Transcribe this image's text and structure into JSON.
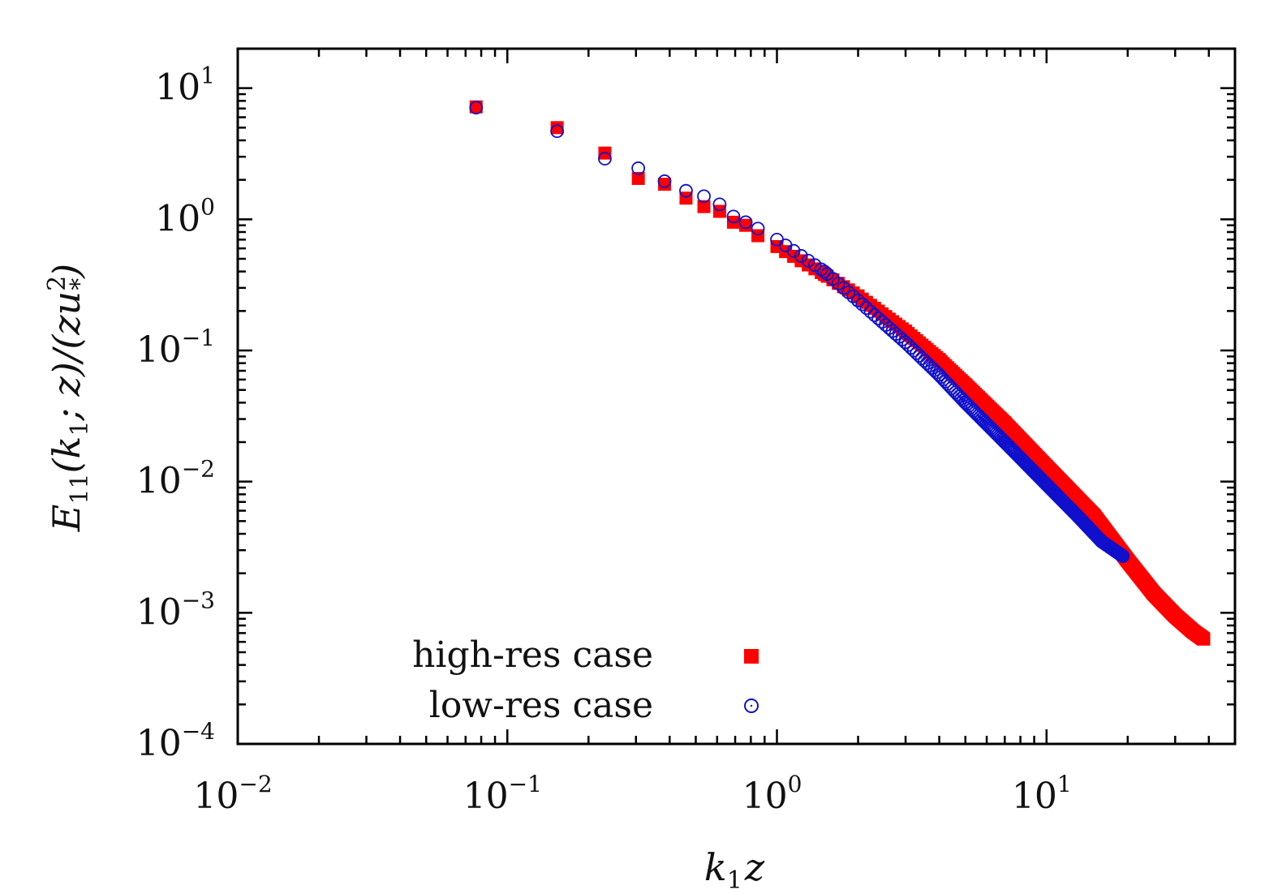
{
  "chart_data": {
    "type": "scatter",
    "x_scale": "log",
    "y_scale": "log",
    "xlim": [
      0.01,
      50
    ],
    "ylim": [
      0.0001,
      20
    ],
    "x_ticks": [
      {
        "value": 0.01,
        "base": "10",
        "exp": "−2"
      },
      {
        "value": 0.1,
        "base": "10",
        "exp": "−1"
      },
      {
        "value": 1,
        "base": "10",
        "exp": "0"
      },
      {
        "value": 10,
        "base": "10",
        "exp": "1"
      }
    ],
    "y_ticks": [
      {
        "value": 10,
        "base": "10",
        "exp": "1"
      },
      {
        "value": 1,
        "base": "10",
        "exp": "0"
      },
      {
        "value": 0.1,
        "base": "10",
        "exp": "−1"
      },
      {
        "value": 0.01,
        "base": "10",
        "exp": "−2"
      },
      {
        "value": 0.001,
        "base": "10",
        "exp": "−3"
      },
      {
        "value": 0.0001,
        "base": "10",
        "exp": "−4"
      }
    ],
    "xlabel": {
      "main": "k",
      "sub": "1",
      "tail": "z"
    },
    "ylabel": {
      "E": "E",
      "E_sub": "11",
      "open": "(k",
      "k_sub": "1",
      "mid": "; z)/(zu",
      "u_sup": "2",
      "u_sub": "*",
      "close": ")"
    },
    "legend_position": "bottom-center",
    "series": [
      {
        "name": "high-res case",
        "marker": "filled-square",
        "color": "#ff0000",
        "anchors": [
          [
            0.0766,
            7.2
          ],
          [
            0.153,
            5.0
          ],
          [
            0.23,
            3.2
          ],
          [
            0.306,
            2.05
          ],
          [
            0.383,
            1.85
          ],
          [
            0.46,
            1.45
          ],
          [
            0.536,
            1.25
          ],
          [
            0.613,
            1.15
          ],
          [
            0.69,
            0.95
          ],
          [
            0.766,
            0.9
          ],
          [
            0.85,
            0.75
          ],
          [
            1.0,
            0.62
          ],
          [
            1.5,
            0.38
          ],
          [
            2.0,
            0.26
          ],
          [
            3.0,
            0.14
          ],
          [
            4.0,
            0.085
          ],
          [
            5.0,
            0.055
          ],
          [
            7.0,
            0.028
          ],
          [
            10.0,
            0.013
          ],
          [
            15.0,
            0.0055
          ],
          [
            20.0,
            0.0025
          ],
          [
            25.0,
            0.0014
          ],
          [
            30.0,
            0.00095
          ],
          [
            35.0,
            0.00072
          ],
          [
            38.3,
            0.00063
          ]
        ]
      },
      {
        "name": "low-res case",
        "marker": "open-circle",
        "color": "#1010cc",
        "anchors": [
          [
            0.0766,
            7.1
          ],
          [
            0.153,
            4.7
          ],
          [
            0.23,
            2.9
          ],
          [
            0.306,
            2.45
          ],
          [
            0.383,
            1.95
          ],
          [
            0.46,
            1.65
          ],
          [
            0.536,
            1.5
          ],
          [
            0.613,
            1.3
          ],
          [
            0.69,
            1.05
          ],
          [
            0.766,
            0.95
          ],
          [
            0.85,
            0.85
          ],
          [
            1.0,
            0.7
          ],
          [
            1.5,
            0.4
          ],
          [
            2.0,
            0.24
          ],
          [
            3.0,
            0.115
          ],
          [
            4.0,
            0.065
          ],
          [
            5.0,
            0.04
          ],
          [
            7.0,
            0.02
          ],
          [
            10.0,
            0.0095
          ],
          [
            13.0,
            0.0055
          ],
          [
            16.0,
            0.0035
          ],
          [
            19.2,
            0.0027
          ]
        ]
      }
    ],
    "dense_spacing": 0.0766
  }
}
